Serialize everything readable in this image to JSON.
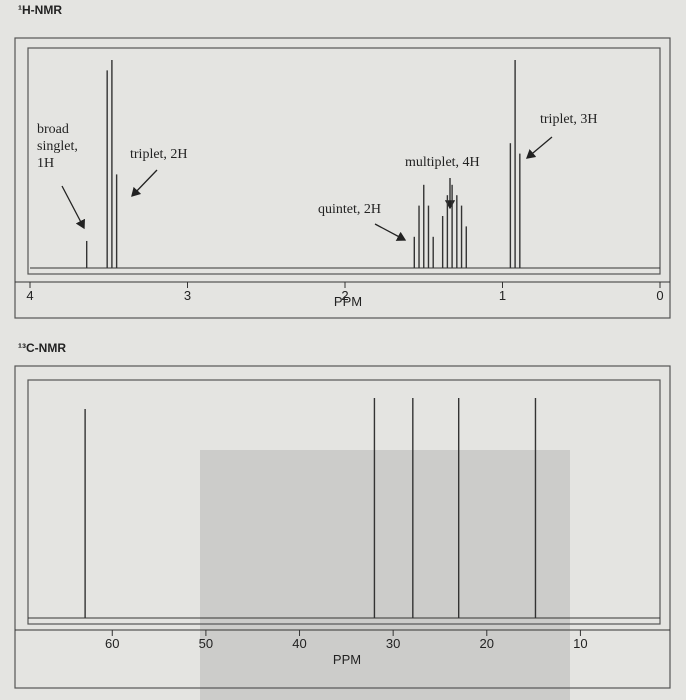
{
  "chart_data": [
    {
      "type": "spectrum",
      "title": "¹H-NMR",
      "xlabel": "PPM",
      "xlim": [
        4,
        0
      ],
      "ylim": [
        0,
        100
      ],
      "xticks": [
        4,
        3,
        2,
        1,
        0
      ],
      "x": [
        3.64,
        3.51,
        3.48,
        3.45,
        1.56,
        1.53,
        1.5,
        1.47,
        1.44,
        1.38,
        1.35,
        1.32,
        1.29,
        1.26,
        1.23,
        0.95,
        0.92,
        0.89
      ],
      "values": [
        13,
        95,
        100,
        45,
        15,
        30,
        40,
        30,
        15,
        25,
        35,
        40,
        35,
        30,
        20,
        60,
        100,
        55
      ],
      "color": "#333333",
      "annotations": [
        {
          "lines": [
            "broad",
            "singlet,",
            "1H"
          ]
        },
        {
          "lines": [
            "triplet, 2H"
          ]
        },
        {
          "lines": [
            "quintet, 2H"
          ]
        },
        {
          "lines": [
            "multiplet, 4H"
          ]
        },
        {
          "lines": [
            "triplet, 3H"
          ]
        }
      ]
    },
    {
      "type": "spectrum",
      "title": "¹³C-NMR",
      "xlabel": "PPM",
      "xlim": [
        69,
        1.5
      ],
      "ylim": [
        0,
        100
      ],
      "xticks": [
        60,
        50,
        40,
        30,
        20,
        10
      ],
      "x": [
        62.9,
        32.0,
        27.9,
        23.0,
        14.8
      ],
      "values": [
        95,
        100,
        100,
        100,
        100
      ],
      "color": "#333333",
      "annotations": []
    }
  ]
}
